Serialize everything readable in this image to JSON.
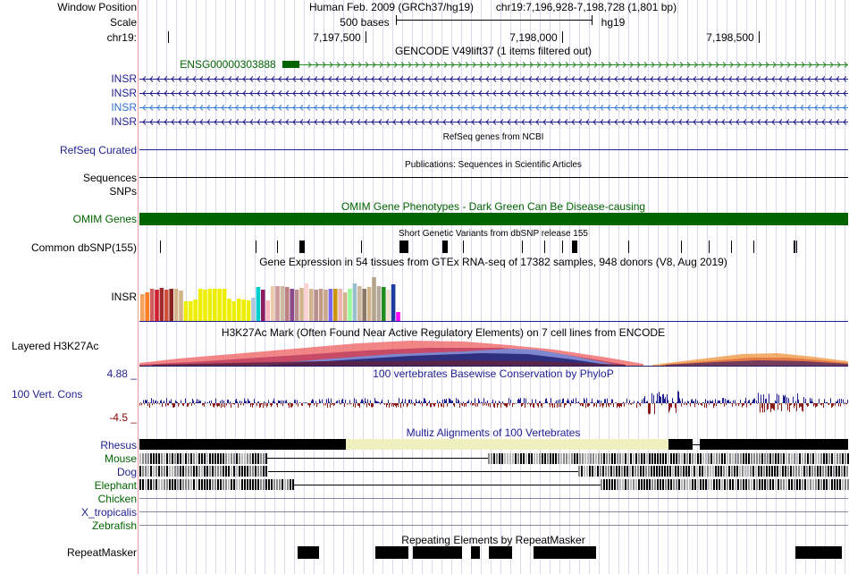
{
  "header": {
    "window_position_label": "Window Position",
    "assembly_text": "Human Feb. 2009 (GRCh37/hg19)",
    "position_text": "chr19:7,196,928-7,198,728 (1,801 bp)",
    "scale_label": "Scale",
    "scale_text": "500 bases",
    "scale_db": "hg19",
    "chrom_label": "chr19:",
    "ticks": [
      {
        "label": "7,197,500",
        "pos": 7197500
      },
      {
        "label": "7,198,000",
        "pos": 7198000
      },
      {
        "label": "7,198,500",
        "pos": 7198500
      }
    ]
  },
  "gencode": {
    "title": "GENCODE V49lift37 (1 items filtered out)",
    "ensg_label": "ENSG00000303888",
    "insr_labels": [
      "INSR",
      "INSR",
      "INSR",
      "INSR"
    ]
  },
  "refseq": {
    "label": "RefSeq Curated",
    "title": "RefSeq genes from NCBI"
  },
  "publications": {
    "label": "Sequences",
    "title": "Publications: Sequences in Scientific Articles"
  },
  "snps": {
    "label": "SNPs"
  },
  "omim": {
    "label": "OMIM Genes",
    "title": "OMIM Gene Phenotypes - Dark Green Can Be Disease-causing",
    "color": "#006400"
  },
  "dbsnp": {
    "label": "Common dbSNP(155)",
    "title": "Short Genetic Variants from dbSNP release 155"
  },
  "gtex": {
    "title": "Gene Expression in 54 tissues from GTEx RNA-seq of 17382 samples, 948 donors (V8, Aug 2019)",
    "label": "INSR",
    "values": [
      0.52,
      0.55,
      0.62,
      0.6,
      0.64,
      0.6,
      0.62,
      0.62,
      0.58,
      0.38,
      0.38,
      0.41,
      0.62,
      0.6,
      0.62,
      0.62,
      0.62,
      0.62,
      0.43,
      0.38,
      0.43,
      0.42,
      0.4,
      0.44,
      0.65,
      0.6,
      0.4,
      0.68,
      0.67,
      0.68,
      0.66,
      0.62,
      0.6,
      0.64,
      0.72,
      0.62,
      0.6,
      0.62,
      0.6,
      0.62,
      0.62,
      0.62,
      0.56,
      0.62,
      0.72,
      0.68,
      0.62,
      0.66,
      0.85,
      0.68,
      0.66,
      0.6,
      0.7,
      0.18
    ],
    "colors": [
      "#f4a460",
      "#ff7f24",
      "#cd5c5c",
      "#d02030",
      "#a52a2a",
      "#cd4f39",
      "#8b2323",
      "#d2b48c",
      "#d2b48c",
      "#eeee00",
      "#eeee00",
      "#eeee00",
      "#eeee00",
      "#eeee00",
      "#eeee00",
      "#eeee00",
      "#eeee00",
      "#eeee00",
      "#eeee00",
      "#eeee00",
      "#eeee00",
      "#eeee00",
      "#eeee00",
      "#b0c4de",
      "#00ced1",
      "#8b1c62",
      "#ffb6c1",
      "#eecbad",
      "#cd9b9b",
      "#cdb79e",
      "#c08080",
      "#8b4789",
      "#bc8f8f",
      "#d2b48c",
      "#ffd0d0",
      "#d2b48c",
      "#bc8f8f",
      "#c39a8a",
      "#c9a989",
      "#7a67ee",
      "#cd950c",
      "#eeb4b4",
      "#d2b48c",
      "#98fb98",
      "#9ac0cd",
      "#cdb79e",
      "#8b7765",
      "#d2b48c",
      "#b5a48c",
      "#b4a89a",
      "#228b22",
      "#f0e0d0",
      "#1e3c9f",
      "#ff00ff"
    ]
  },
  "h3k27ac": {
    "label": "Layered H3K27Ac",
    "title": "H3K27Ac Mark (Often Found Near Active Regulatory Elements) on 7 cell lines from ENCODE"
  },
  "conservation": {
    "label": "100 Vert. Cons",
    "title": "100 vertebrates Basewise Conservation by PhyloP",
    "max_label": "4.88 _",
    "min_label": "-4.5 _"
  },
  "multiz": {
    "title": "Multiz Alignments of 100 Vertebrates",
    "species": [
      {
        "name": "Rhesus",
        "color": "#1f1f8f"
      },
      {
        "name": "Mouse",
        "color": "#006400"
      },
      {
        "name": "Dog",
        "color": "#1f1f8f"
      },
      {
        "name": "Elephant",
        "color": "#006400"
      },
      {
        "name": "Chicken",
        "color": "#006400"
      },
      {
        "name": "X_tropicalis",
        "color": "#1f1f8f"
      },
      {
        "name": "Zebrafish",
        "color": "#006400"
      }
    ]
  },
  "repeatmasker": {
    "label": "RepeatMasker",
    "title": "Repeating Elements by RepeatMasker"
  }
}
